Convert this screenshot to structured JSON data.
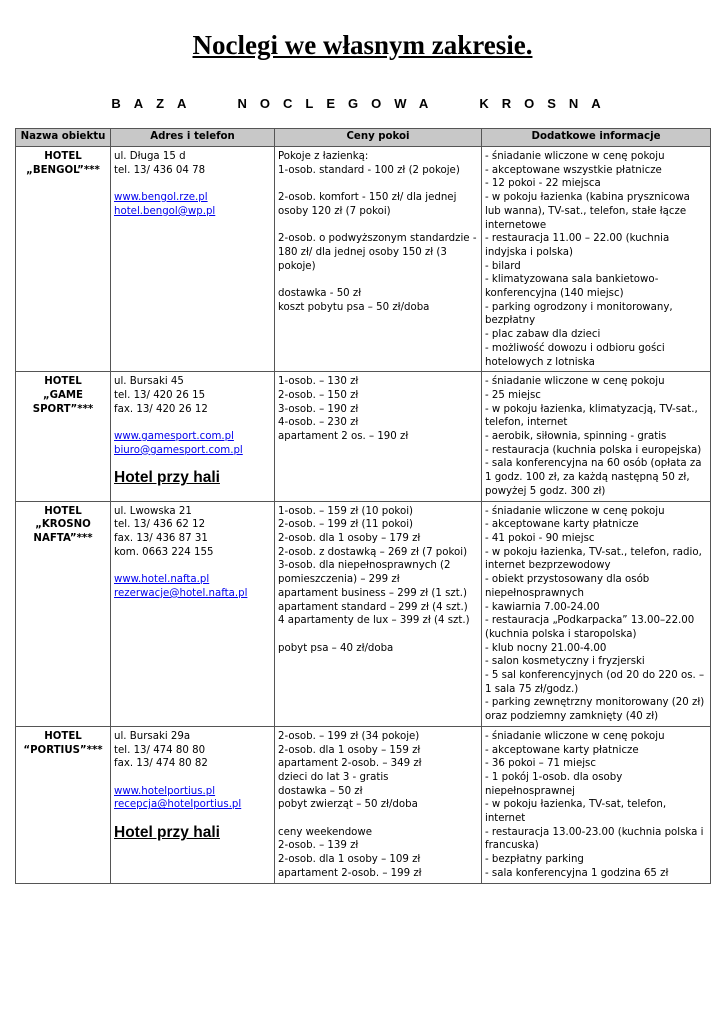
{
  "title": "Noclegi we własnym zakresie.",
  "subtitle": "BAZA NOCLEGOWA KROSNA",
  "headers": [
    "Nazwa obiektu",
    "Adres i telefon",
    "Ceny pokoi",
    "Dodatkowe informacje"
  ],
  "rows": [
    {
      "name": "HOTEL\n„BENGOL”***",
      "address": "ul. Długa 15 d\ntel. 13/ 436 04 78",
      "www": "www.bengol.rze.pl",
      "email": "hotel.bengol@wp.pl",
      "note": "",
      "prices": "Pokoje z łazienką:\n1-osob. standard - 100 zł (2 pokoje)\n\n2-osob. komfort - 150 zł/ dla jednej osoby 120 zł (7 pokoi)\n\n2-osob. o podwyższonym standardzie - 180 zł/ dla jednej osoby 150 zł (3 pokoje)\n\ndostawka - 50 zł\nkoszt pobytu psa – 50 zł/doba",
      "info": "- śniadanie wliczone w cenę pokoju\n- akceptowane wszystkie płatnicze\n- 12 pokoi - 22 miejsca\n- w pokoju łazienka (kabina prysznicowa lub wanna), TV-sat., telefon, stałe łącze internetowe\n- restauracja 11.00 – 22.00 (kuchnia indyjska i polska)\n- bilard\n- klimatyzowana sala bankietowo-konferencyjna (140 miejsc)\n- parking ogrodzony i monitorowany, bezpłatny\n- plac zabaw dla dzieci\n- możliwość dowozu i odbioru gości hotelowych z lotniska"
    },
    {
      "name": "HOTEL\n„GAME SPORT”***",
      "address": "ul. Bursaki 45\ntel. 13/ 420 26 15\nfax. 13/ 420 26 12",
      "www": "www.gamesport.com.pl",
      "email": "biuro@gamesport.com.pl",
      "note": "Hotel przy hali",
      "prices": "1-osob. – 130 zł\n2-osob. – 150 zł\n3-osob. – 190 zł\n4-osob. – 230 zł\napartament 2 os. – 190 zł",
      "info": "- śniadanie wliczone w cenę pokoju\n- 25 miejsc\n- w pokoju łazienka, klimatyzacją, TV-sat., telefon, internet\n- aerobik, siłownia, spinning - gratis\n- restauracja (kuchnia polska i europejska)\n- sala konferencyjna na 60 osób (opłata za 1 godz. 100 zł, za każdą następną 50 zł, powyżej 5 godz. 300 zł)"
    },
    {
      "name": "HOTEL\n„KROSNO NAFTA”***",
      "address": "ul. Lwowska 21\ntel. 13/ 436 62 12\nfax. 13/ 436 87 31\nkom. 0663 224 155",
      "www": "www.hotel.nafta.pl",
      "email": "rezerwacje@hotel.nafta.pl",
      "note": "",
      "prices": "1-osob. – 159 zł (10 pokoi)\n2-osob. – 199 zł (11 pokoi)\n2-osob. dla 1 osoby – 179 zł\n2-osob. z dostawką – 269 zł (7 pokoi)\n3-osob. dla niepełnosprawnych (2 pomieszczenia) – 299 zł\napartament business – 299 zł (1 szt.)\napartament standard – 299 zł (4 szt.)\n4 apartamenty de lux – 399 zł (4 szt.)\n\npobyt psa – 40 zł/doba",
      "info": "- śniadanie wliczone w cenę pokoju\n- akceptowane karty płatnicze\n- 41 pokoi - 90 miejsc\n- w pokoju łazienka, TV-sat., telefon, radio, internet bezprzewodowy\n- obiekt przystosowany dla osób niepełnosprawnych\n- kawiarnia 7.00-24.00\n- restauracja „Podkarpacka” 13.00–22.00 (kuchnia polska i staropolska)\n- klub nocny 21.00-4.00\n- salon kosmetyczny i fryzjerski\n- 5 sal konferencyjnych (od 20 do 220 os. – 1 sala 75 zł/godz.)\n- parking zewnętrzny monitorowany (20 zł) oraz podziemny zamknięty (40 zł)"
    },
    {
      "name": "HOTEL\n“PORTIUS”***",
      "address": "ul. Bursaki 29a\ntel. 13/ 474 80 80\nfax. 13/ 474 80 82",
      "www": "www.hotelportius.pl",
      "email": "recepcja@hotelportius.pl",
      "note": "Hotel przy hali",
      "prices": "2-osob. – 199 zł (34 pokoje)\n2-osob. dla 1 osoby – 159 zł\napartament 2-osob. – 349 zł\ndzieci do lat 3 - gratis\ndostawka – 50 zł\npobyt zwierząt – 50 zł/doba\n\nceny weekendowe\n2-osob. – 139 zł\n2-osob. dla 1 osoby – 109 zł\napartament 2-osob. – 199 zł",
      "info": "- śniadanie wliczone w cenę pokoju\n- akceptowane karty płatnicze\n- 36 pokoi – 71 miejsc\n- 1 pokój 1-osob. dla osoby niepełnosprawnej\n- w pokoju łazienka, TV-sat, telefon, internet\n- restauracja 13.00-23.00 (kuchnia polska i francuska)\n- bezpłatny parking\n- sala konferencyjna 1 godzina 65 zł"
    }
  ]
}
